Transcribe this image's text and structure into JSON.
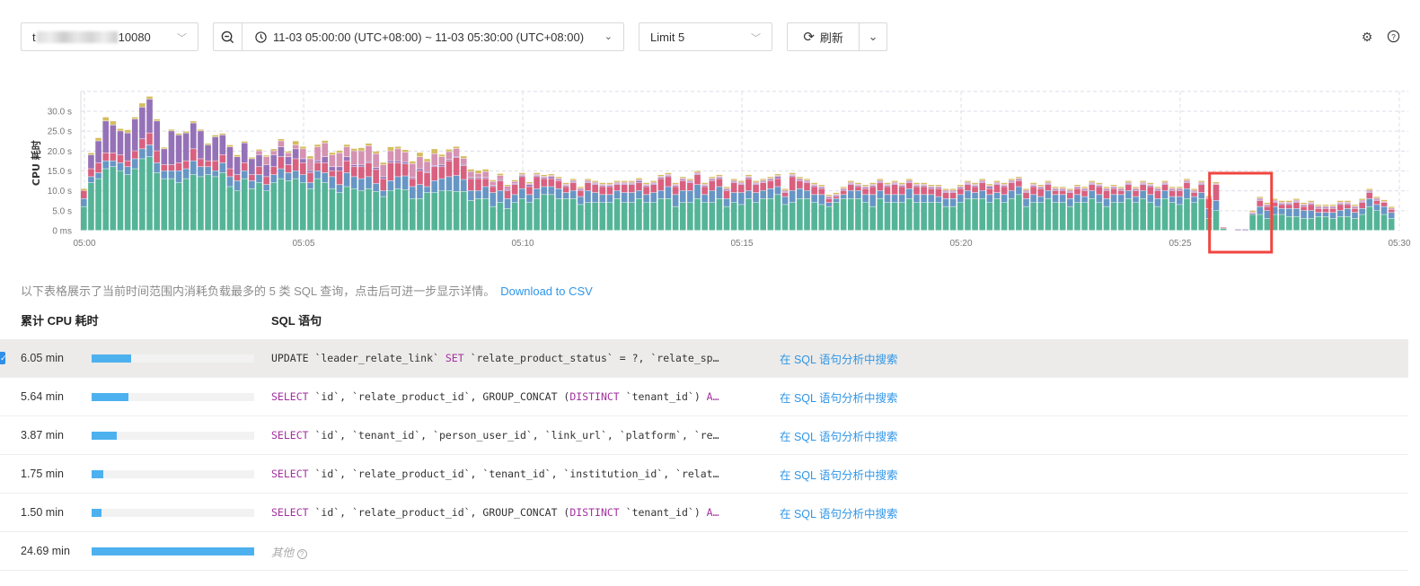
{
  "toolbar": {
    "instance": {
      "prefix": "t",
      "suffix": "10080"
    },
    "time_range": "11-03 05:00:00 (UTC+08:00) ~ 11-03 05:30:00 (UTC+08:00)",
    "limit": "Limit 5",
    "refresh": "刷新"
  },
  "chart_data": {
    "type": "bar",
    "stacked": true,
    "ylabel": "CPU 耗时",
    "yticks": [
      "0 ms",
      "5.0 s",
      "10.0 s",
      "15.0 s",
      "20.0 s",
      "25.0 s",
      "30.0 s"
    ],
    "ylim": [
      0,
      35
    ],
    "xticks": [
      "05:00",
      "05:05",
      "05:10",
      "05:15",
      "05:20",
      "05:25",
      "05:30"
    ],
    "x_start": "05:00:00",
    "x_end": "05:30:00",
    "grid": true,
    "colors": [
      "#55b497",
      "#6796c5",
      "#d9607f",
      "#9572b8",
      "#d592b2",
      "#d5bd5f"
    ],
    "highlight_box": {
      "from": "05:25:50",
      "to": "05:27:10",
      "color": "#f0453f"
    },
    "series": [
      {
        "values": [
          6,
          12,
          13,
          15.5,
          16,
          15,
          14,
          15.5,
          18,
          18.5,
          14.5,
          13,
          13,
          12,
          13,
          14,
          13.5,
          14,
          13.5,
          14.5,
          11,
          10,
          13,
          10.5,
          12,
          10,
          12,
          13,
          12.5,
          13,
          12,
          10.5,
          13,
          12,
          10.5,
          9.5,
          11,
          10.5,
          10,
          10.5,
          9.8,
          8.5,
          10,
          10.5,
          10.2,
          8,
          8,
          9.5,
          9.5,
          10,
          10,
          9.8,
          9.8,
          7.5,
          8,
          8,
          6,
          7,
          5.5,
          7,
          8,
          7,
          8,
          9,
          9,
          8,
          8,
          8,
          6.5,
          7,
          7,
          7,
          7,
          8,
          7,
          7,
          8,
          7,
          7,
          8,
          8,
          6,
          7,
          7,
          8,
          7,
          7,
          8,
          6,
          7,
          6.5,
          8,
          7,
          8,
          8,
          9,
          6.5,
          7,
          8,
          8,
          7,
          6.5,
          6,
          7,
          8,
          8,
          8,
          7,
          6,
          8,
          7,
          7,
          7,
          8,
          7,
          7,
          7,
          7,
          6,
          6,
          7,
          8,
          8,
          8,
          7,
          8,
          7,
          8,
          9,
          6,
          7,
          7,
          8,
          7,
          7,
          6,
          7,
          7,
          8,
          7,
          6,
          7,
          7,
          8,
          7,
          8,
          7,
          6,
          8,
          7,
          6.5,
          8,
          7,
          8,
          3,
          5,
          0.5,
          0,
          0,
          0,
          4,
          4,
          3,
          4,
          4,
          3.5,
          3.5,
          3,
          3,
          3.5,
          3.5,
          3,
          3.5,
          3.5,
          3,
          4,
          6,
          5,
          4,
          3
        ]
      },
      {
        "values": [
          2,
          1.5,
          1.5,
          2,
          1.5,
          2,
          2,
          2.5,
          2.5,
          3,
          2.5,
          2,
          2,
          3,
          2.5,
          3.5,
          2.5,
          2,
          1.5,
          2.5,
          2.5,
          2.5,
          2,
          2,
          2,
          1.5,
          2,
          2.5,
          2,
          2,
          2,
          1.5,
          2,
          2.5,
          3,
          2,
          3.5,
          3,
          3,
          3,
          2,
          1.5,
          2.5,
          3,
          3.5,
          3,
          3.5,
          1.5,
          3,
          3,
          3.5,
          4,
          3,
          2.5,
          2,
          3,
          3.5,
          3,
          2.5,
          2,
          2.5,
          2,
          2.5,
          2,
          2,
          2.5,
          1.5,
          2,
          2,
          3,
          2.5,
          2,
          2,
          2,
          2.5,
          2.5,
          2,
          2,
          2.5,
          2,
          3,
          3,
          3,
          3,
          3.5,
          2,
          3,
          3,
          2,
          2.5,
          3,
          2,
          2.5,
          2,
          2.5,
          2,
          2,
          3,
          2.5,
          2,
          2,
          2.5,
          1,
          1,
          1,
          2,
          2,
          2,
          3,
          2,
          2,
          2,
          2,
          2.5,
          2,
          2,
          2,
          1.5,
          2,
          2,
          2,
          2,
          1.5,
          2,
          2,
          1.5,
          2,
          2,
          2,
          2,
          2,
          1.5,
          2,
          2,
          2,
          2,
          2,
          1.5,
          2,
          2,
          2,
          2,
          2,
          2,
          1.5,
          2,
          2,
          2,
          2,
          1.5,
          2,
          2.5,
          1.5,
          1.5,
          2.5,
          2.5,
          0,
          0,
          0,
          0,
          0,
          2,
          2,
          2,
          1.5,
          2,
          2,
          2,
          2,
          1,
          1,
          1.5,
          1.5,
          2,
          1.5,
          1.5,
          2,
          1.5,
          2,
          1.5
        ]
      },
      {
        "values": [
          2,
          2,
          2.5,
          2,
          2,
          2,
          1.5,
          2,
          2.5,
          3,
          3,
          1.5,
          1.5,
          2,
          2,
          3,
          2,
          1.5,
          2.5,
          2,
          2,
          1.5,
          2,
          1.5,
          2,
          2,
          2,
          3,
          2,
          3,
          3,
          2.5,
          2,
          2.5,
          1.5,
          3.5,
          3,
          2.5,
          3,
          3.5,
          3.5,
          3,
          4.5,
          3.5,
          3,
          2,
          3.5,
          3.5,
          3.5,
          3,
          4,
          4.5,
          3.5,
          3,
          3,
          2,
          1.5,
          2.5,
          2,
          2.5,
          3,
          2,
          3,
          2,
          2,
          2,
          1.5,
          2,
          1.5,
          2,
          2,
          2,
          2,
          1.5,
          2,
          2,
          2,
          2,
          2,
          3,
          2.5,
          2,
          2.5,
          2,
          2.5,
          2,
          2.5,
          2,
          2,
          2.5,
          2,
          3,
          2,
          2,
          2,
          2,
          1,
          3.5,
          2,
          2,
          2,
          1.5,
          1,
          0.5,
          1,
          1.5,
          1,
          1.5,
          2,
          2,
          2,
          2.5,
          2,
          1.5,
          2,
          2,
          1.5,
          2,
          1.5,
          1.5,
          1.5,
          1.5,
          1.5,
          2,
          1.5,
          2,
          2,
          2,
          1.5,
          1.5,
          2,
          2,
          1.5,
          1,
          1,
          1.5,
          1.5,
          1.5,
          1.5,
          2,
          2,
          1.5,
          1,
          1.5,
          1.5,
          1.5,
          2,
          2,
          1.5,
          1.5,
          1.5,
          1.5,
          1,
          2,
          2.5,
          4,
          0.3,
          0,
          0,
          0,
          0,
          1.5,
          1,
          1,
          1,
          1,
          1.5,
          1,
          1.5,
          1,
          1,
          1,
          1.5,
          1,
          1,
          1.5,
          1.5,
          1,
          1,
          0.8
        ]
      },
      {
        "values": [
          0,
          3.5,
          5.5,
          8,
          7,
          6,
          7,
          8,
          8,
          8.5,
          7.5,
          4,
          8.5,
          7,
          7,
          6.5,
          7,
          4,
          6,
          5,
          5.5,
          4.5,
          5,
          4,
          3,
          3,
          3,
          2.5,
          2,
          2.5,
          1,
          0.5,
          0.5,
          1.5,
          1,
          1,
          1,
          0.5,
          0.5,
          0.3,
          0.5,
          0.5,
          0.5,
          0.5,
          0.5,
          0.3,
          0.5,
          0.3,
          0.3,
          0.5,
          0.3,
          0.3,
          0.3,
          0.3,
          0.3,
          0.3,
          0.3,
          0.3,
          0.3,
          0.3,
          0.3,
          0.5,
          0.3,
          0.3,
          0.5,
          0.3,
          0.3,
          0.3,
          0.3,
          0.3,
          0.3,
          0.3,
          0.3,
          0.3,
          0.3,
          0.3,
          0.5,
          0.3,
          0.3,
          0.3,
          0.3,
          0.3,
          0.3,
          0.3,
          0.3,
          0.3,
          0.3,
          0.3,
          0.3,
          0.3,
          0.3,
          0.3,
          0.3,
          0.3,
          0.3,
          0.5,
          0.3,
          0.3,
          0.3,
          0.3,
          0.3,
          0.3,
          0.3,
          0.3,
          0.3,
          0.3,
          0.3,
          0.3,
          0.3,
          0.3,
          0.3,
          0.3,
          0.3,
          0.3,
          0.3,
          0.3,
          0.3,
          0.3,
          0.3,
          0.3,
          0.3,
          0.3,
          0.3,
          0.3,
          0.5,
          0.3,
          0.3,
          0.3,
          0.3,
          0.3,
          0.3,
          0.3,
          0.3,
          0.3,
          0.3,
          0.3,
          0.3,
          0.3,
          0.3,
          0.3,
          0.3,
          0.3,
          0.3,
          0.3,
          0.3,
          0.3,
          0.3,
          0.3,
          0.3,
          0.3,
          0.3,
          0.3,
          0.3,
          0.3,
          0,
          0,
          0,
          0,
          0.3,
          0.3,
          0.3,
          0.3,
          0.3,
          0.3,
          0.3,
          0.3,
          0.3,
          0.3,
          0.3,
          0.3,
          0.3,
          0.3,
          0.3,
          0.3,
          0.3,
          0.3,
          0.3,
          0.3
        ]
      },
      {
        "values": [
          0,
          0,
          0,
          0,
          0,
          0,
          0,
          0,
          0,
          0,
          0,
          0,
          0,
          0,
          0,
          0,
          0,
          0,
          0,
          0,
          0,
          0,
          0,
          0,
          1,
          2,
          1,
          1.5,
          1,
          1,
          2.5,
          3,
          3.5,
          3.5,
          3,
          3.5,
          2.5,
          3.5,
          3.5,
          4,
          3.5,
          3,
          2.5,
          3,
          2.5,
          3.5,
          3,
          2.5,
          3,
          2,
          2,
          2,
          1.5,
          1.5,
          1,
          1.5,
          1,
          1,
          0.8,
          0.5,
          0.3,
          0.3,
          0.3,
          0.3,
          0.3,
          0.3,
          0.3,
          0.3,
          0.3,
          0.3,
          0.3,
          0.3,
          0.3,
          0.3,
          0.3,
          0.3,
          0.3,
          0.3,
          0.3,
          0.3,
          0.3,
          0.3,
          0.3,
          0.3,
          0.3,
          0.3,
          0.3,
          0.3,
          0.3,
          0.3,
          0.3,
          0.3,
          0.3,
          0.3,
          0.3,
          0.3,
          0.3,
          0.3,
          0.3,
          0.3,
          0.3,
          0.3,
          0.3,
          0.3,
          0.3,
          0.3,
          0.3,
          0.3,
          0.3,
          0.3,
          0.3,
          0.3,
          0.3,
          0.3,
          0.3,
          0.3,
          0.3,
          0.3,
          0.3,
          0.3,
          0.3,
          0.3,
          0.3,
          0.3,
          0.3,
          0.3,
          0.3,
          0.3,
          0.3,
          0.3,
          0.3,
          0.3,
          0.3,
          0.3,
          0.3,
          0.3,
          0.3,
          0.3,
          0.3,
          0.3,
          0.3,
          0.3,
          0.3,
          0.3,
          0.3,
          0.3,
          0.3,
          0.3,
          0.3,
          0.3,
          0.3,
          0.3,
          0.3,
          0.3,
          0.3,
          0.3,
          0,
          0,
          0,
          0,
          0.3,
          0.3,
          0.3,
          0.3,
          0.3,
          0.3,
          0.3,
          0.3,
          0.3,
          0.3,
          0.3,
          0.3,
          0.3,
          0.3,
          0.3,
          0.3,
          0.3,
          0.3,
          0.3,
          0.3
        ]
      },
      {
        "values": [
          0.5,
          0.5,
          0.8,
          1,
          1,
          0.6,
          0.8,
          0.5,
          1,
          0.7,
          0.5,
          0.4,
          0.4,
          0.4,
          0.4,
          0.5,
          0.4,
          0.4,
          0.5,
          0.4,
          0.5,
          0.5,
          0.4,
          0.4,
          0.4,
          0.4,
          0.5,
          0.5,
          0.4,
          1,
          0.6,
          0.7,
          0.6,
          0.6,
          0.6,
          0.6,
          0.6,
          0.6,
          0.8,
          0.6,
          0.6,
          0.6,
          1,
          0.6,
          0.6,
          0.6,
          1.1,
          0.7,
          1.2,
          0.6,
          0.6,
          0.5,
          0.6,
          0.6,
          0.8,
          0.6,
          0.4,
          0.5,
          0.4,
          0.4,
          0.4,
          0.4,
          0.4,
          0.4,
          0.4,
          0.4,
          0.4,
          0.4,
          0.4,
          0.4,
          0.4,
          0.4,
          0.4,
          0.4,
          0.4,
          0.4,
          0.4,
          0.4,
          0.4,
          0.4,
          0.4,
          0.4,
          0.4,
          0.4,
          0.4,
          0.4,
          0.4,
          0.4,
          0.4,
          0.4,
          0.4,
          0.4,
          0.4,
          0.4,
          0.4,
          0.4,
          0.4,
          0.4,
          0.4,
          0.4,
          0.4,
          0.4,
          0.4,
          0.4,
          0.4,
          0.4,
          0.4,
          0.4,
          0.4,
          0.4,
          0.4,
          0.4,
          0.4,
          0.4,
          0.4,
          0.4,
          0.4,
          0.4,
          0.4,
          0.4,
          0.4,
          0.4,
          0.4,
          0.4,
          0.4,
          0.4,
          0.4,
          0.4,
          0.4,
          0.4,
          0.4,
          0.4,
          0.4,
          0.4,
          0.4,
          0.4,
          0.4,
          0.4,
          0.4,
          0.4,
          0.4,
          0.4,
          0.4,
          0.4,
          0.4,
          0.4,
          0.4,
          0.4,
          0.4,
          0.4,
          0.4,
          0.4,
          0.4,
          0.4,
          0.4,
          0.4,
          0,
          0,
          0,
          0,
          0.4,
          0.4,
          0.4,
          0.4,
          0.4,
          0.4,
          0.4,
          0.4,
          0.4,
          0.4,
          0.4,
          0.4,
          0.4,
          0.4,
          0.4,
          0.4,
          0.4,
          0.4,
          0.4,
          0.4
        ]
      }
    ]
  },
  "description": "以下表格展示了当前时间范围内消耗负载最多的 5 类 SQL 查询，点击后可进一步显示详情。",
  "download_csv": "Download to CSV",
  "table": {
    "headers": {
      "cpu": "累计 CPU 耗时",
      "sql": "SQL 语句"
    },
    "max_cpu_min": 24.69,
    "rows": [
      {
        "cpu": "6.05 min",
        "cpu_min": 6.05,
        "selected": true,
        "link": "在 SQL 语句分析中搜索",
        "sql": [
          [
            "UPDATE `leader_relate_link` ",
            0
          ],
          [
            "SET",
            1
          ],
          [
            " `relate_product_status` = ?, `relate_sp…",
            0
          ]
        ]
      },
      {
        "cpu": "5.64 min",
        "cpu_min": 5.64,
        "link": "在 SQL 语句分析中搜索",
        "sql": [
          [
            "SELECT",
            1
          ],
          [
            " `id`, `relate_product_id`, GROUP_CONCAT (",
            0
          ],
          [
            "DISTINCT",
            1
          ],
          [
            " `tenant_id`) ",
            0
          ],
          [
            "A…",
            1
          ]
        ]
      },
      {
        "cpu": "3.87 min",
        "cpu_min": 3.87,
        "link": "在 SQL 语句分析中搜索",
        "sql": [
          [
            "SELECT",
            1
          ],
          [
            " `id`, `tenant_id`, `person_user_id`, `link_url`, `platform`, `re…",
            0
          ]
        ]
      },
      {
        "cpu": "1.75 min",
        "cpu_min": 1.75,
        "link": "在 SQL 语句分析中搜索",
        "sql": [
          [
            "SELECT",
            1
          ],
          [
            " `id`, `relate_product_id`, `tenant_id`, `institution_id`, `relat…",
            0
          ]
        ]
      },
      {
        "cpu": "1.50 min",
        "cpu_min": 1.5,
        "link": "在 SQL 语句分析中搜索",
        "sql": [
          [
            "SELECT",
            1
          ],
          [
            " `id`, `relate_product_id`, GROUP_CONCAT (",
            0
          ],
          [
            "DISTINCT",
            1
          ],
          [
            " `tenant_id`) ",
            0
          ],
          [
            "A…",
            1
          ]
        ]
      }
    ],
    "other": {
      "cpu": "24.69 min",
      "cpu_min": 24.69,
      "label": "其他"
    }
  }
}
